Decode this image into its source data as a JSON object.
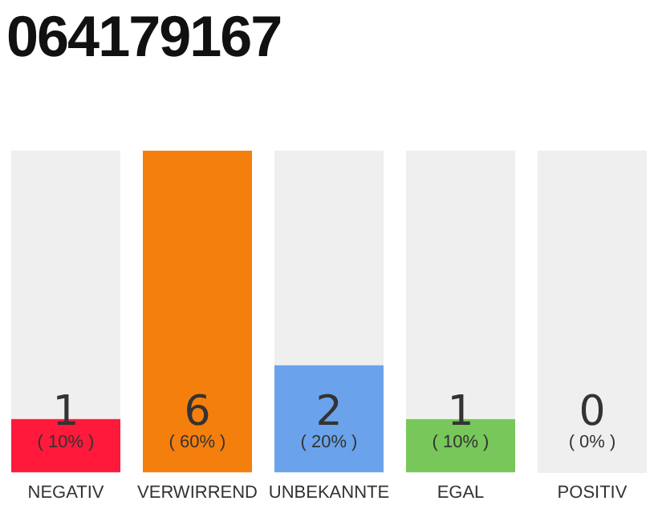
{
  "chart_data": {
    "type": "bar",
    "title": "064179167",
    "categories": [
      "NEGATIV",
      "VERWIRREND",
      "UNBEKANNTE",
      "EGAL",
      "POSITIV"
    ],
    "values": [
      10,
      60,
      20,
      10,
      0
    ],
    "colors": [
      "#ff1a3c",
      "#f57f0c",
      "#6aa3ec",
      "#78c75a",
      "#cccccc"
    ],
    "value_labels": [
      "( 10% )",
      "( 60% )",
      "( 20% )",
      "( 10% )",
      "( 0% )"
    ],
    "annotations": [
      "1",
      "6",
      "2",
      "1",
      "0"
    ],
    "tick_labels": "x",
    "grid": false,
    "legend": false
  }
}
